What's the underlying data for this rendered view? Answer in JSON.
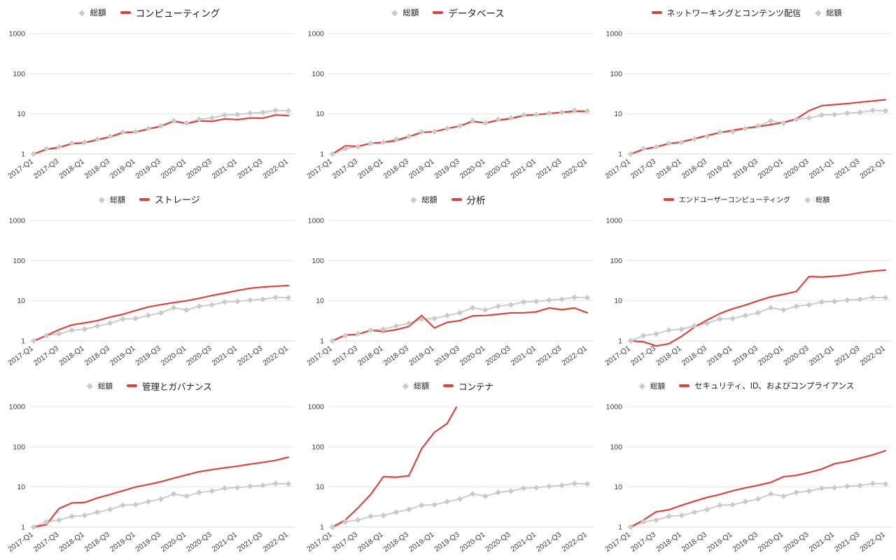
{
  "page": {
    "background": "#ffffff",
    "description_units": "indexed revenue, 2017-Q1 = 1, log scale"
  },
  "colors": {
    "total_line": "#cccccc",
    "total_marker": "#c9caca",
    "category_line": "#d9453b",
    "gridline": "#e6e6e6",
    "baseline": "#d9d9d9",
    "axis_text": "#3d3d3d"
  },
  "chart_data": {
    "type": "line",
    "layout": "3x3-small-multiples",
    "log_scale": true,
    "ylim": [
      1,
      1000
    ],
    "y_tick_labels": [
      "1000",
      "100",
      "10",
      "1"
    ],
    "y_tick_values": [
      1000,
      100,
      10,
      1
    ],
    "x_tick_every": 2,
    "categories": [
      "2017-Q1",
      "2017-Q2",
      "2017-Q3",
      "2017-Q4",
      "2018-Q1",
      "2018-Q2",
      "2018-Q3",
      "2018-Q4",
      "2019-Q1",
      "2019-Q2",
      "2019-Q3",
      "2019-Q4",
      "2020-Q1",
      "2020-Q2",
      "2020-Q3",
      "2020-Q4",
      "2021-Q1",
      "2021-Q2",
      "2021-Q3",
      "2021-Q4",
      "2022-Q1"
    ],
    "x_tick_labels": [
      "2017-Q1",
      "2017-Q3",
      "2018-Q1",
      "2018-Q3",
      "2019-Q1",
      "2019-Q3",
      "2020-Q1",
      "2020-Q3",
      "2021-Q1",
      "2021-Q3",
      "2022-Q1"
    ],
    "total_series": {
      "name": "総額",
      "values": [
        1,
        1.35,
        1.5,
        1.85,
        1.95,
        2.35,
        2.75,
        3.5,
        3.6,
        4.3,
        5,
        6.7,
        5.9,
        7.3,
        7.9,
        9.3,
        9.6,
        10.4,
        10.9,
        12.2,
        11.9
      ]
    },
    "panels": [
      {
        "category": "コンピューティング",
        "legend_order": "total-first",
        "legend_font_px": 13.5,
        "total_font_px": 11.5,
        "values": [
          1,
          1.3,
          1.45,
          1.8,
          1.9,
          2.25,
          2.65,
          3.4,
          3.5,
          4.2,
          4.9,
          6.6,
          5.7,
          6.7,
          6.5,
          7.5,
          7.2,
          7.9,
          7.8,
          9.4,
          9
        ]
      },
      {
        "category": "データベース",
        "legend_order": "total-first",
        "legend_font_px": 13.5,
        "total_font_px": 11.5,
        "values": [
          1,
          1.6,
          1.55,
          1.85,
          1.95,
          2.15,
          2.7,
          3.45,
          3.6,
          4.3,
          5,
          6.5,
          5.9,
          6.9,
          7.6,
          9.1,
          9.5,
          10.2,
          10.9,
          11.6,
          11.4
        ]
      },
      {
        "category": "ネットワーキングとコンテンツ配信",
        "legend_order": "category-first",
        "legend_font_px": 12,
        "total_font_px": 11,
        "values": [
          1,
          1.3,
          1.5,
          1.8,
          2,
          2.4,
          2.9,
          3.4,
          3.9,
          4.4,
          4.8,
          5.4,
          6.1,
          7.5,
          12,
          16,
          17,
          18,
          19.5,
          21,
          22.5
        ]
      },
      {
        "category": "ストレージ",
        "legend_order": "total-first",
        "legend_font_px": 13,
        "total_font_px": 11,
        "values": [
          1,
          1.35,
          1.9,
          2.5,
          2.8,
          3.2,
          3.9,
          4.6,
          5.7,
          7,
          8,
          9,
          10,
          11.5,
          13.5,
          15.5,
          18,
          20.5,
          22,
          23,
          24
        ]
      },
      {
        "category": "分析",
        "legend_order": "total-first",
        "legend_font_px": 13.5,
        "total_font_px": 11,
        "values": [
          1,
          1.4,
          1.45,
          1.85,
          1.7,
          1.9,
          2.3,
          4.3,
          2.1,
          2.9,
          3.2,
          4.2,
          4.3,
          4.6,
          5,
          5,
          5.3,
          6.6,
          6,
          6.6,
          5
        ]
      },
      {
        "category": "エンドユーザーコンピューティング",
        "legend_order": "category-first",
        "legend_font_px": 10,
        "total_font_px": 10,
        "values": [
          1,
          0.95,
          0.75,
          0.85,
          1.3,
          2.2,
          3.3,
          4.8,
          6.3,
          7.8,
          10,
          12.5,
          14.5,
          17,
          40,
          39,
          41,
          44,
          50,
          55,
          58
        ]
      },
      {
        "category": "管理とガバナンス",
        "legend_order": "total-first",
        "legend_font_px": 12.5,
        "total_font_px": 10.5,
        "values": [
          1,
          1.15,
          2.9,
          4,
          4.1,
          5.3,
          6.5,
          8,
          10,
          11.5,
          13.5,
          16.5,
          20,
          24,
          27,
          30,
          33,
          37,
          41,
          46,
          55
        ]
      },
      {
        "category": "コンテナ",
        "legend_order": "total-first",
        "legend_font_px": 12.5,
        "total_font_px": 11,
        "values": [
          1,
          1.5,
          3,
          6.5,
          18,
          17.5,
          19,
          90,
          230,
          380,
          1400,
          null,
          null,
          null,
          null,
          null,
          null,
          null,
          null,
          null,
          null
        ]
      },
      {
        "category": "セキュリティ、ID、およびコンプライアンス",
        "legend_order": "total-first",
        "legend_font_px": 11.5,
        "total_font_px": 10.5,
        "values": [
          1,
          1.5,
          2.4,
          2.7,
          3.5,
          4.4,
          5.5,
          6.5,
          8,
          9.5,
          11,
          13,
          18,
          19.5,
          23,
          28,
          38,
          43,
          52,
          63,
          80
        ]
      }
    ]
  }
}
